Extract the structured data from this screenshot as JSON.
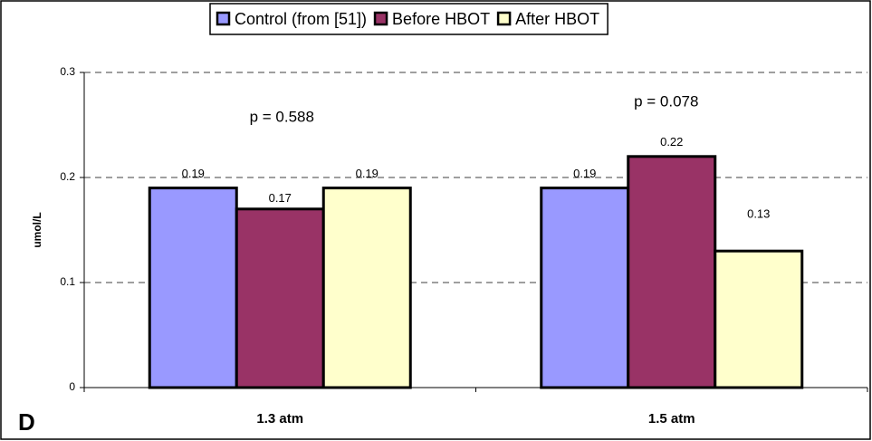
{
  "chart_data": {
    "type": "bar",
    "categories": [
      "1.3 atm",
      "1.5 atm"
    ],
    "series": [
      {
        "name": "Control (from [51])",
        "color": "#9999ff",
        "values": [
          0.19,
          0.19
        ]
      },
      {
        "name": "Before HBOT",
        "color": "#993366",
        "values": [
          0.17,
          0.22
        ]
      },
      {
        "name": "After HBOT",
        "color": "#ffffcc",
        "values": [
          0.19,
          0.13
        ]
      }
    ],
    "ylabel": "umol/L",
    "ylim": [
      0,
      0.3
    ],
    "yticks": [
      0,
      0.1,
      0.2,
      0.3
    ],
    "grid": true,
    "legend": "top",
    "annotations": [
      "p = 0.588",
      "p = 0.078"
    ],
    "panel_label": "D"
  }
}
